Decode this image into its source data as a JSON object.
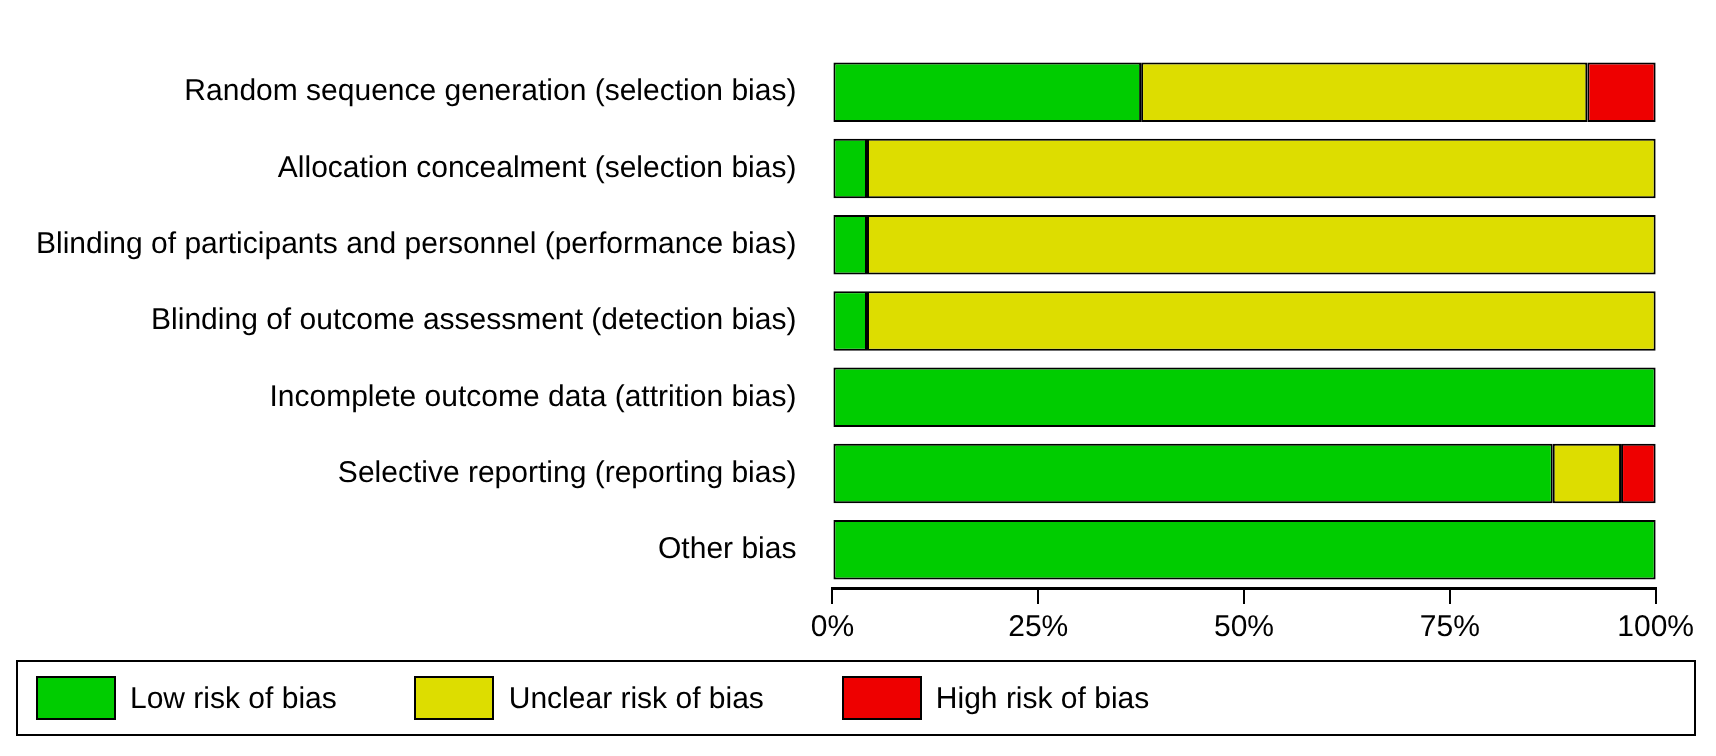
{
  "chart_data": {
    "type": "bar",
    "orientation": "horizontal",
    "stacked": true,
    "categories": [
      "Random sequence generation (selection bias)",
      "Allocation concealment (selection bias)",
      "Blinding of participants and personnel (performance bias)",
      "Blinding of outcome assessment (detection bias)",
      "Incomplete outcome data (attrition bias)",
      "Selective reporting (reporting bias)",
      "Other bias"
    ],
    "series": [
      {
        "name": "Low risk of bias",
        "color": "#00cc00",
        "values": [
          37.5,
          4.2,
          4.2,
          4.2,
          100,
          87.5,
          100
        ]
      },
      {
        "name": "Unclear risk of bias",
        "color": "#dddd00",
        "values": [
          54.2,
          95.8,
          95.8,
          95.8,
          0,
          8.3,
          0
        ]
      },
      {
        "name": "High risk of bias",
        "color": "#ee0000",
        "values": [
          8.3,
          0,
          0,
          0,
          0,
          4.2,
          0
        ]
      }
    ],
    "xlim": [
      0,
      100
    ],
    "xticks": [
      {
        "value": 0,
        "label": "0%"
      },
      {
        "value": 25,
        "label": "25%"
      },
      {
        "value": 50,
        "label": "50%"
      },
      {
        "value": 75,
        "label": "75%"
      },
      {
        "value": 100,
        "label": "100%"
      }
    ],
    "grid": false,
    "legend": "bottom"
  }
}
